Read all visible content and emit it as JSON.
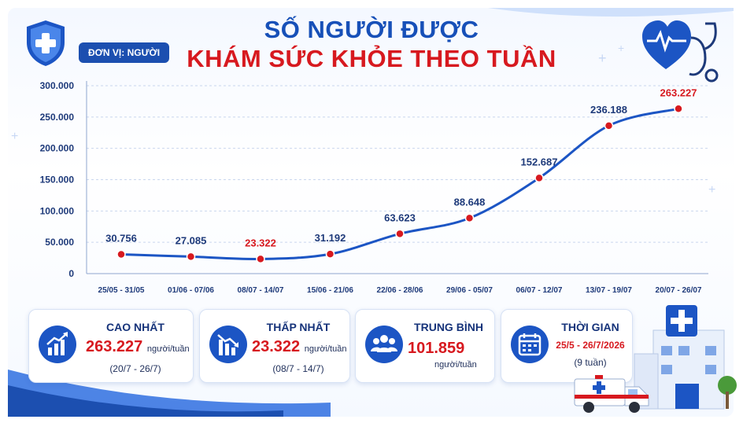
{
  "header": {
    "title_line1": "SỐ NGƯỜI ĐƯỢC",
    "title_line2": "KHÁM SỨC KHỎE THEO TUẦN",
    "unit_label": "ĐƠN VỊ: NGƯỜI"
  },
  "chart_data": {
    "type": "line",
    "categories": [
      "25/05 - 31/05",
      "01/06 - 07/06",
      "08/07 - 14/07",
      "15/06 - 21/06",
      "22/06 - 28/06",
      "29/06 - 05/07",
      "06/07 - 12/07",
      "13/07 - 19/07",
      "20/07 - 26/07"
    ],
    "values": [
      30756,
      27085,
      23322,
      31192,
      63623,
      88648,
      152687,
      236188,
      263227
    ],
    "data_labels": [
      "30.756",
      "27.085",
      "23.322",
      "31.192",
      "63.623",
      "88.648",
      "152.687",
      "236.188",
      "263.227"
    ],
    "highlight_labels": [
      2,
      8
    ],
    "y_ticks": [
      "0",
      "50.000",
      "100.000",
      "150.000",
      "200.000",
      "250.000",
      "300.000"
    ],
    "y_tick_values": [
      0,
      50000,
      100000,
      150000,
      200000,
      250000,
      300000
    ],
    "ylim": [
      0,
      300000
    ],
    "grid": true,
    "line_color": "#1c55c4",
    "marker_color": "#d7191f",
    "label_color": "#1e3a7a",
    "highlight_color": "#d7191f"
  },
  "cards": {
    "max": {
      "title": "CAO NHẤT",
      "value": "263.227",
      "unit": "người/tuần",
      "sub": "(20/7 - 26/7)",
      "icon": "bar-chart-up-icon"
    },
    "min": {
      "title": "THẤP NHẤT",
      "value": "23.322",
      "unit": "người/tuần",
      "sub": "(08/7 - 14/7)",
      "icon": "bar-chart-down-icon"
    },
    "avg": {
      "title": "TRUNG BÌNH",
      "value": "101.859",
      "unit": "người/tuần",
      "icon": "people-group-icon"
    },
    "time": {
      "title": "THỜI GIAN",
      "value": "25/5 - 26/7/2026",
      "sub": "(9 tuần)",
      "icon": "calendar-icon"
    }
  }
}
